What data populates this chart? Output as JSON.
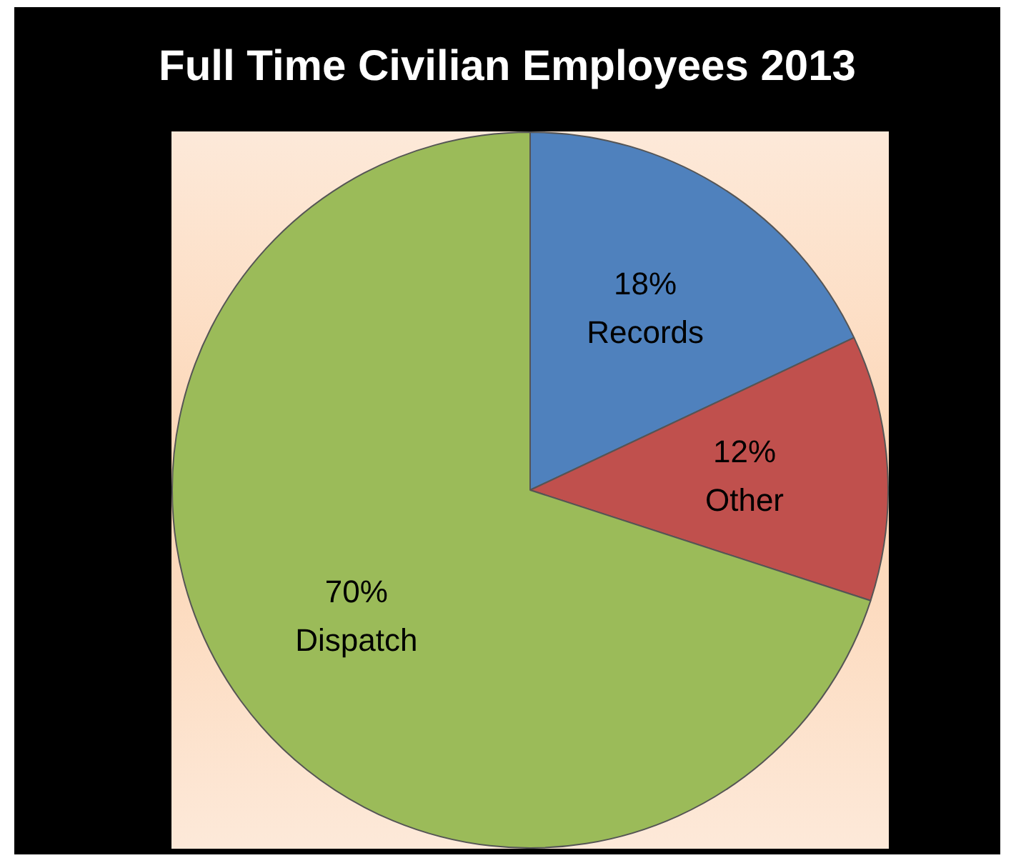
{
  "chart_data": {
    "type": "pie",
    "title": "Full Time Civilian Employees 2013",
    "categories": [
      "Records",
      "Other",
      "Dispatch"
    ],
    "values": [
      18,
      12,
      70
    ],
    "value_labels": [
      "18%",
      "12%",
      "70%"
    ],
    "colors": [
      "#4f81bd",
      "#c0504d",
      "#9bbb59"
    ]
  }
}
